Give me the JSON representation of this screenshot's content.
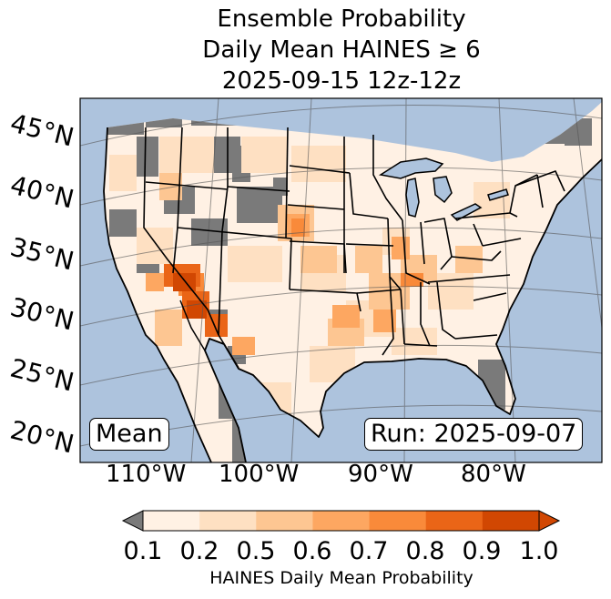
{
  "chart_data": {
    "type": "heatmap",
    "title_lines": [
      "Ensemble Probability",
      "Daily Mean HAINES ≥ 6",
      "2025-09-15 12z-12z"
    ],
    "map_region": "Contiguous United States",
    "lat_ticks": [
      "45°N",
      "40°N",
      "35°N",
      "30°N",
      "25°N",
      "20°N"
    ],
    "lon_ticks": [
      "110°W",
      "100°W",
      "90°W",
      "80°W"
    ],
    "colorbar": {
      "label": "HAINES Daily Mean Probability",
      "ticks": [
        "0.1",
        "0.2",
        "0.5",
        "0.6",
        "0.7",
        "0.8",
        "0.9",
        "1.0"
      ],
      "colors": [
        "#fff1e4",
        "#fee0c2",
        "#fdc692",
        "#fda761",
        "#f98a3a",
        "#ea6517",
        "#d14702"
      ],
      "under_color": "#7a7a7a",
      "over_color": "#8a2f02",
      "extend": "both"
    },
    "annotations": {
      "statistic": "Mean",
      "run": "Run: 2025-09-07"
    },
    "ocean_color": "#adc3dd",
    "below_threshold_color": "#7a7a7a"
  }
}
